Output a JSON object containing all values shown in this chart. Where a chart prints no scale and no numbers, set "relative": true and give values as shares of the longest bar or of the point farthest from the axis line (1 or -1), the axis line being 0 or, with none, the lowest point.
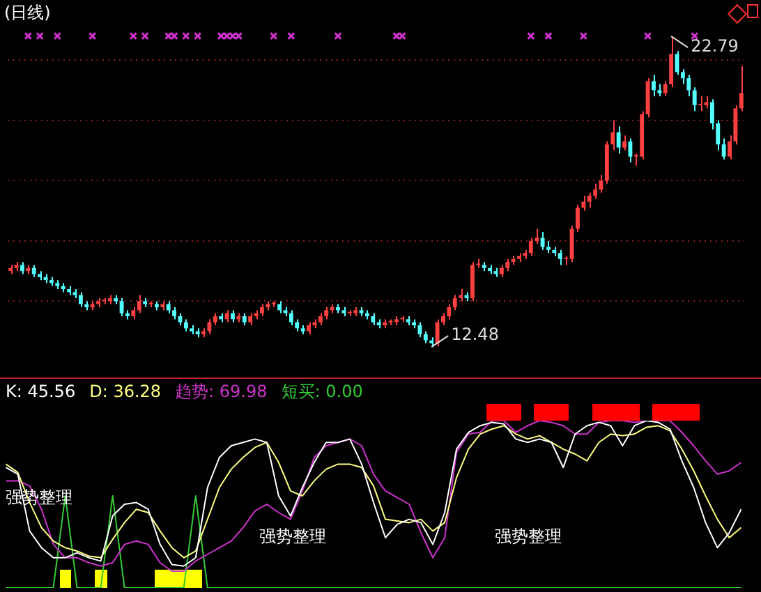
{
  "chart_data": [
    {
      "type": "candlestick",
      "title": "(日线)",
      "categories": [
        null,
        null,
        null,
        null,
        null,
        null,
        null,
        null,
        null,
        null,
        null,
        null,
        null,
        null,
        null,
        null,
        null,
        null,
        null,
        null,
        null,
        null,
        null,
        null,
        null,
        null,
        null,
        null,
        null,
        null,
        null,
        null,
        null,
        null,
        null,
        null,
        null,
        null,
        null,
        null,
        null,
        null,
        null,
        null,
        null,
        null,
        null,
        null,
        null,
        null,
        null,
        null,
        null,
        null,
        null,
        null,
        null,
        null,
        null,
        null,
        null,
        null,
        null,
        null,
        null,
        null,
        null,
        null,
        null,
        null,
        null,
        null,
        null,
        null,
        null,
        null,
        null,
        null,
        null,
        null,
        null,
        null,
        null,
        null,
        null,
        null,
        null,
        null,
        null,
        null,
        null,
        null,
        null,
        null,
        null,
        null,
        null,
        null,
        null,
        null,
        null,
        null,
        null,
        null,
        null,
        null,
        null,
        null,
        null,
        null,
        null,
        null,
        null,
        null,
        null,
        null,
        null,
        null,
        null,
        null,
        null,
        null,
        null,
        null,
        null,
        null
      ],
      "ohlc": [
        [
          15.0,
          15.2,
          14.9,
          15.1
        ],
        [
          15.1,
          15.3,
          15.0,
          15.2
        ],
        [
          15.2,
          15.3,
          14.9,
          15.0
        ],
        [
          15.0,
          15.2,
          14.9,
          15.1
        ],
        [
          15.1,
          15.2,
          14.8,
          14.9
        ],
        [
          14.9,
          15.0,
          14.7,
          14.8
        ],
        [
          14.8,
          14.9,
          14.6,
          14.7
        ],
        [
          14.7,
          14.8,
          14.5,
          14.6
        ],
        [
          14.6,
          14.7,
          14.4,
          14.5
        ],
        [
          14.5,
          14.6,
          14.3,
          14.4
        ],
        [
          14.4,
          14.5,
          14.2,
          14.3
        ],
        [
          14.3,
          14.4,
          14.1,
          14.2
        ],
        [
          14.2,
          14.3,
          13.8,
          13.9
        ],
        [
          13.9,
          14.0,
          13.7,
          13.8
        ],
        [
          13.8,
          14.0,
          13.7,
          13.9
        ],
        [
          13.9,
          14.1,
          13.8,
          14.0
        ],
        [
          14.0,
          14.1,
          13.9,
          14.0
        ],
        [
          14.0,
          14.2,
          13.9,
          14.1
        ],
        [
          14.1,
          14.2,
          13.9,
          14.0
        ],
        [
          14.0,
          14.1,
          13.5,
          13.6
        ],
        [
          13.6,
          13.7,
          13.4,
          13.5
        ],
        [
          13.5,
          13.8,
          13.4,
          13.7
        ],
        [
          13.7,
          14.2,
          13.6,
          14.0
        ],
        [
          14.0,
          14.1,
          13.8,
          13.9
        ],
        [
          13.9,
          14.0,
          13.8,
          13.9
        ],
        [
          13.9,
          14.0,
          13.7,
          13.8
        ],
        [
          13.8,
          14.0,
          13.7,
          13.9
        ],
        [
          13.9,
          14.0,
          13.6,
          13.7
        ],
        [
          13.7,
          13.8,
          13.4,
          13.5
        ],
        [
          13.5,
          13.6,
          13.2,
          13.3
        ],
        [
          13.3,
          13.4,
          13.0,
          13.1
        ],
        [
          13.1,
          13.2,
          12.9,
          13.0
        ],
        [
          13.0,
          13.1,
          12.8,
          12.9
        ],
        [
          12.9,
          13.1,
          12.8,
          13.0
        ],
        [
          13.0,
          13.4,
          12.9,
          13.3
        ],
        [
          13.3,
          13.6,
          13.2,
          13.5
        ],
        [
          13.5,
          13.6,
          13.3,
          13.4
        ],
        [
          13.4,
          13.7,
          13.3,
          13.6
        ],
        [
          13.6,
          13.7,
          13.3,
          13.4
        ],
        [
          13.4,
          13.6,
          13.3,
          13.5
        ],
        [
          13.5,
          13.6,
          13.2,
          13.3
        ],
        [
          13.3,
          13.6,
          13.2,
          13.5
        ],
        [
          13.5,
          13.7,
          13.4,
          13.6
        ],
        [
          13.6,
          13.9,
          13.5,
          13.8
        ],
        [
          13.8,
          14.0,
          13.7,
          13.9
        ],
        [
          13.9,
          14.0,
          13.8,
          13.9
        ],
        [
          13.9,
          14.0,
          13.6,
          13.7
        ],
        [
          13.7,
          13.8,
          13.5,
          13.6
        ],
        [
          13.6,
          13.7,
          13.2,
          13.3
        ],
        [
          13.3,
          13.4,
          13.0,
          13.1
        ],
        [
          13.1,
          13.2,
          12.9,
          13.0
        ],
        [
          13.0,
          13.3,
          12.9,
          13.2
        ],
        [
          13.2,
          13.4,
          13.1,
          13.3
        ],
        [
          13.3,
          13.6,
          13.2,
          13.5
        ],
        [
          13.5,
          13.8,
          13.4,
          13.7
        ],
        [
          13.7,
          13.9,
          13.6,
          13.8
        ],
        [
          13.8,
          13.9,
          13.6,
          13.7
        ],
        [
          13.7,
          13.8,
          13.5,
          13.6
        ],
        [
          13.6,
          13.7,
          13.5,
          13.6
        ],
        [
          13.6,
          13.8,
          13.5,
          13.7
        ],
        [
          13.7,
          13.8,
          13.5,
          13.6
        ],
        [
          13.6,
          13.7,
          13.4,
          13.5
        ],
        [
          13.5,
          13.6,
          13.2,
          13.3
        ],
        [
          13.3,
          13.4,
          13.1,
          13.2
        ],
        [
          13.2,
          13.4,
          13.1,
          13.3
        ],
        [
          13.3,
          13.4,
          13.2,
          13.3
        ],
        [
          13.3,
          13.5,
          13.2,
          13.4
        ],
        [
          13.4,
          13.5,
          13.3,
          13.4
        ],
        [
          13.4,
          13.5,
          13.2,
          13.3
        ],
        [
          13.3,
          13.4,
          13.1,
          13.2
        ],
        [
          13.2,
          13.3,
          12.8,
          12.9
        ],
        [
          12.9,
          13.0,
          12.6,
          12.7
        ],
        [
          12.7,
          12.8,
          12.48,
          12.6
        ],
        [
          12.6,
          13.4,
          12.5,
          13.3
        ],
        [
          13.3,
          13.6,
          13.2,
          13.5
        ],
        [
          13.5,
          13.9,
          13.4,
          13.8
        ],
        [
          13.8,
          14.2,
          13.7,
          14.1
        ],
        [
          14.1,
          14.4,
          14.0,
          14.2
        ],
        [
          14.2,
          14.3,
          14.0,
          14.1
        ],
        [
          14.1,
          15.3,
          14.0,
          15.2
        ],
        [
          15.2,
          15.4,
          15.1,
          15.2
        ],
        [
          15.2,
          15.3,
          15.0,
          15.1
        ],
        [
          15.1,
          15.2,
          14.9,
          15.0
        ],
        [
          15.0,
          15.1,
          14.8,
          14.9
        ],
        [
          14.9,
          15.2,
          14.8,
          15.1
        ],
        [
          15.1,
          15.4,
          15.0,
          15.3
        ],
        [
          15.3,
          15.5,
          15.2,
          15.4
        ],
        [
          15.4,
          15.6,
          15.3,
          15.5
        ],
        [
          15.5,
          15.7,
          15.4,
          15.6
        ],
        [
          15.6,
          16.1,
          15.5,
          16.0
        ],
        [
          16.0,
          16.4,
          15.9,
          16.1
        ],
        [
          16.1,
          16.3,
          15.7,
          15.8
        ],
        [
          15.8,
          16.0,
          15.6,
          15.7
        ],
        [
          15.7,
          15.8,
          15.5,
          15.6
        ],
        [
          15.6,
          15.7,
          15.2,
          15.4
        ],
        [
          15.4,
          15.5,
          15.2,
          15.4
        ],
        [
          15.4,
          16.5,
          15.3,
          16.4
        ],
        [
          16.4,
          17.2,
          16.3,
          17.1
        ],
        [
          17.1,
          17.5,
          17.0,
          17.3
        ],
        [
          17.3,
          17.6,
          17.1,
          17.5
        ],
        [
          17.5,
          17.9,
          17.4,
          17.7
        ],
        [
          17.7,
          18.2,
          17.6,
          18.0
        ],
        [
          18.0,
          19.3,
          17.9,
          19.2
        ],
        [
          19.2,
          20.0,
          19.0,
          19.6
        ],
        [
          19.6,
          19.8,
          18.9,
          19.1
        ],
        [
          19.1,
          19.5,
          19.0,
          19.3
        ],
        [
          19.3,
          19.4,
          18.6,
          18.8
        ],
        [
          18.8,
          18.9,
          18.5,
          18.8
        ],
        [
          18.8,
          20.3,
          18.7,
          20.2
        ],
        [
          20.2,
          21.4,
          20.1,
          21.3
        ],
        [
          21.3,
          21.5,
          20.8,
          21.0
        ],
        [
          21.0,
          21.2,
          20.8,
          20.9
        ],
        [
          20.9,
          21.3,
          20.8,
          21.2
        ],
        [
          21.2,
          22.79,
          21.1,
          22.2
        ],
        [
          22.2,
          22.3,
          21.5,
          21.6
        ],
        [
          21.6,
          21.7,
          21.2,
          21.4
        ],
        [
          21.4,
          21.5,
          20.8,
          21.0
        ],
        [
          21.0,
          21.1,
          20.3,
          20.5
        ],
        [
          20.5,
          20.8,
          20.3,
          20.5
        ],
        [
          20.5,
          20.8,
          20.4,
          20.6
        ],
        [
          20.6,
          20.7,
          19.7,
          19.9
        ],
        [
          19.9,
          20.0,
          19.0,
          19.2
        ],
        [
          19.2,
          19.4,
          18.7,
          18.8
        ],
        [
          18.8,
          19.5,
          18.7,
          19.3
        ],
        [
          19.3,
          20.5,
          19.2,
          20.4
        ],
        [
          20.4,
          21.8,
          20.3,
          20.9
        ]
      ],
      "series": [
        {
          "type": "scatter",
          "color": "#cc33cc",
          "values": [
            null,
            null,
            null,
            22.8,
            null,
            22.8,
            null,
            null,
            22.8,
            null,
            null,
            null,
            null,
            null,
            22.8,
            null,
            null,
            null,
            null,
            null,
            null,
            22.8,
            null,
            22.8,
            null,
            null,
            null,
            22.8,
            22.8,
            null,
            22.8,
            null,
            22.8,
            null,
            null,
            null,
            22.8,
            22.8,
            22.8,
            22.8,
            null,
            null,
            null,
            null,
            null,
            22.8,
            null,
            null,
            22.8,
            null,
            null,
            null,
            null,
            null,
            null,
            null,
            22.8,
            null,
            null,
            null,
            null,
            null,
            null,
            null,
            null,
            null,
            22.8,
            22.8,
            null,
            null,
            null,
            null,
            null,
            null,
            null,
            null,
            null,
            null,
            null,
            null,
            null,
            null,
            null,
            null,
            null,
            null,
            null,
            null,
            null,
            22.8,
            null,
            null,
            22.8,
            null,
            null,
            null,
            null,
            null,
            22.8,
            null,
            null,
            null,
            null,
            null,
            null,
            null,
            null,
            null,
            null,
            22.8,
            null,
            null,
            null,
            null,
            null,
            null,
            null,
            22.8,
            null,
            null,
            null,
            null,
            null,
            null,
            null,
            null
          ]
        }
      ],
      "marker": "cross",
      "yticks": [
        {
          "value": 14,
          "label": null
        },
        {
          "value": 16,
          "label": null
        },
        {
          "value": 18,
          "label": null
        },
        {
          "value": 20,
          "label": null
        },
        {
          "value": 22,
          "label": null
        }
      ],
      "grid": "y",
      "tick_labels": false,
      "annotations": [
        "22.79",
        "12.48"
      ]
    },
    {
      "type": "line",
      "relative": true,
      "categories": [
        null,
        null,
        null,
        null,
        null,
        null,
        null,
        null,
        null,
        null,
        null,
        null,
        null,
        null,
        null,
        null,
        null,
        null,
        null,
        null,
        null,
        null,
        null,
        null,
        null,
        null,
        null,
        null,
        null,
        null,
        null,
        null,
        null,
        null,
        null,
        null,
        null,
        null,
        null,
        null,
        null,
        null,
        null,
        null,
        null,
        null,
        null,
        null,
        null,
        null,
        null,
        null,
        null,
        null,
        null,
        null,
        null,
        null,
        null,
        null,
        null,
        null,
        null
      ],
      "series": [
        {
          "name": "K",
          "color": "#ffffff",
          "values": [
            0.72,
            0.68,
            0.34,
            0.24,
            0.18,
            0.18,
            0.21,
            0.18,
            0.16,
            0.43,
            0.5,
            0.51,
            0.47,
            0.26,
            0.14,
            0.13,
            0.18,
            0.6,
            0.78,
            0.85,
            0.87,
            0.89,
            0.87,
            0.55,
            0.43,
            0.6,
            0.75,
            0.87,
            0.87,
            0.89,
            0.74,
            0.51,
            0.3,
            0.38,
            0.41,
            0.39,
            0.26,
            0.45,
            0.83,
            0.93,
            0.97,
            0.99,
            0.98,
            0.89,
            0.87,
            0.89,
            0.87,
            0.72,
            0.92,
            0.97,
            0.99,
            0.97,
            0.85,
            0.97,
            1,
            0.99,
            0.95,
            0.76,
            0.6,
            0.39,
            0.24,
            0.33,
            0.47
          ]
        },
        {
          "name": "D",
          "color": "#ffff80",
          "values": [
            0.74,
            0.69,
            0.51,
            0.36,
            0.28,
            0.24,
            0.22,
            0.19,
            0.18,
            0.29,
            0.39,
            0.47,
            0.45,
            0.34,
            0.24,
            0.18,
            0.22,
            0.41,
            0.6,
            0.71,
            0.78,
            0.84,
            0.87,
            0.75,
            0.58,
            0.55,
            0.64,
            0.71,
            0.74,
            0.74,
            0.72,
            0.61,
            0.41,
            0.4,
            0.39,
            0.41,
            0.34,
            0.39,
            0.66,
            0.83,
            0.92,
            0.95,
            0.97,
            0.92,
            0.89,
            0.91,
            0.87,
            0.83,
            0.8,
            0.76,
            0.87,
            0.92,
            0.91,
            0.92,
            0.96,
            0.97,
            0.94,
            0.83,
            0.7,
            0.55,
            0.41,
            0.3,
            0.36
          ]
        },
        {
          "name": "趋势",
          "color": "#cc33cc",
          "values": [
            0.64,
            0.64,
            0.61,
            0.47,
            0.26,
            0.18,
            0.18,
            0.15,
            0.13,
            0.15,
            0.26,
            0.28,
            0.26,
            0.15,
            0.1,
            0.1,
            0.16,
            0.2,
            0.24,
            0.28,
            0.36,
            0.46,
            0.5,
            0.45,
            0.41,
            0.58,
            0.78,
            0.85,
            0.87,
            0.89,
            0.85,
            0.68,
            0.58,
            0.54,
            0.5,
            0.33,
            0.18,
            0.3,
            0.81,
            0.92,
            0.93,
            1,
            1,
            0.93,
            0.97,
            1,
            0.99,
            0.97,
            0.92,
            0.92,
            0.99,
            1,
            1,
            0.99,
            1,
            1,
            1,
            0.93,
            0.85,
            0.76,
            0.68,
            0.7,
            0.75
          ]
        },
        {
          "name": "短买",
          "color": "#33cc33",
          "values": [
            0,
            0,
            0,
            0,
            0,
            0.55,
            0,
            0,
            0,
            0.55,
            0,
            0,
            0,
            0,
            0,
            0,
            0.55,
            0,
            0,
            0,
            0,
            0,
            0,
            0,
            0,
            0,
            0,
            0,
            0,
            0,
            0,
            0,
            0,
            0,
            0,
            0,
            0,
            0,
            0,
            0,
            0,
            0,
            0,
            0,
            0,
            0,
            0,
            0,
            0,
            0,
            0,
            0,
            0,
            0,
            0,
            0,
            0,
            0,
            0,
            0,
            0,
            0,
            0
          ]
        }
      ],
      "annotations": [
        ": 45.56",
        ": 36.28",
        ": 69.98",
        ": 0.00",
        "强势整理",
        "强势整理",
        "强势整理"
      ]
    }
  ]
}
